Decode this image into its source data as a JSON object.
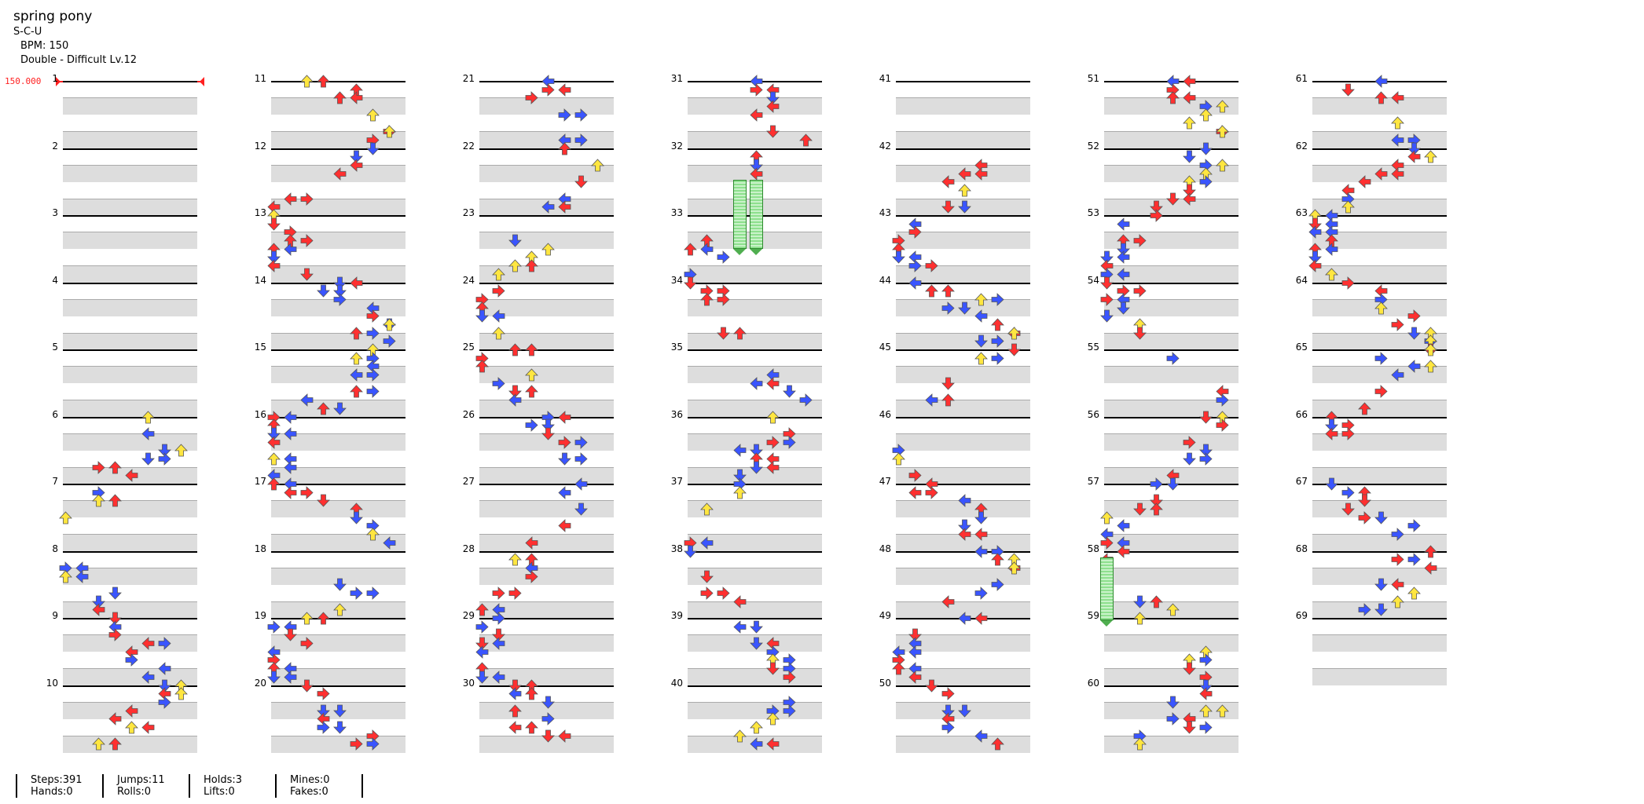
{
  "song": {
    "title": "spring pony",
    "artist": "S-C-U",
    "bpm_text": "BPM: 150",
    "difficulty": "Double - Difficult  Lv.12"
  },
  "bpm_marker": "150.000",
  "colors": {
    "red": "#ff3030",
    "blue": "#3a55ff",
    "yellow": "#ffe640",
    "hold": "#8ee08e"
  },
  "columns": [
    {
      "measures": [
        "1",
        "2",
        "3",
        "4",
        "5",
        "6",
        "7",
        "8",
        "9",
        "10"
      ]
    },
    {
      "measures": [
        "11",
        "12",
        "13",
        "14",
        "15",
        "16",
        "17",
        "18",
        "19",
        "20"
      ]
    },
    {
      "measures": [
        "21",
        "22",
        "23",
        "24",
        "25",
        "26",
        "27",
        "28",
        "29",
        "30"
      ]
    },
    {
      "measures": [
        "31",
        "32",
        "33",
        "34",
        "35",
        "36",
        "37",
        "38",
        "39",
        "40"
      ]
    },
    {
      "measures": [
        "41",
        "42",
        "43",
        "44",
        "45",
        "46",
        "47",
        "48",
        "49",
        "50"
      ]
    },
    {
      "measures": [
        "51",
        "52",
        "53",
        "54",
        "55",
        "56",
        "57",
        "58",
        "59",
        "60"
      ]
    },
    {
      "measures": [
        "61",
        "62",
        "63",
        "64",
        "65",
        "66",
        "67",
        "68",
        "69"
      ]
    }
  ],
  "stats": [
    {
      "a": "Steps:391",
      "b": "Hands:0"
    },
    {
      "a": "Jumps:11",
      "b": "Rolls:0"
    },
    {
      "a": "Holds:3",
      "b": "Lifts:0"
    },
    {
      "a": "Mines:0",
      "b": "Fakes:0"
    }
  ]
}
